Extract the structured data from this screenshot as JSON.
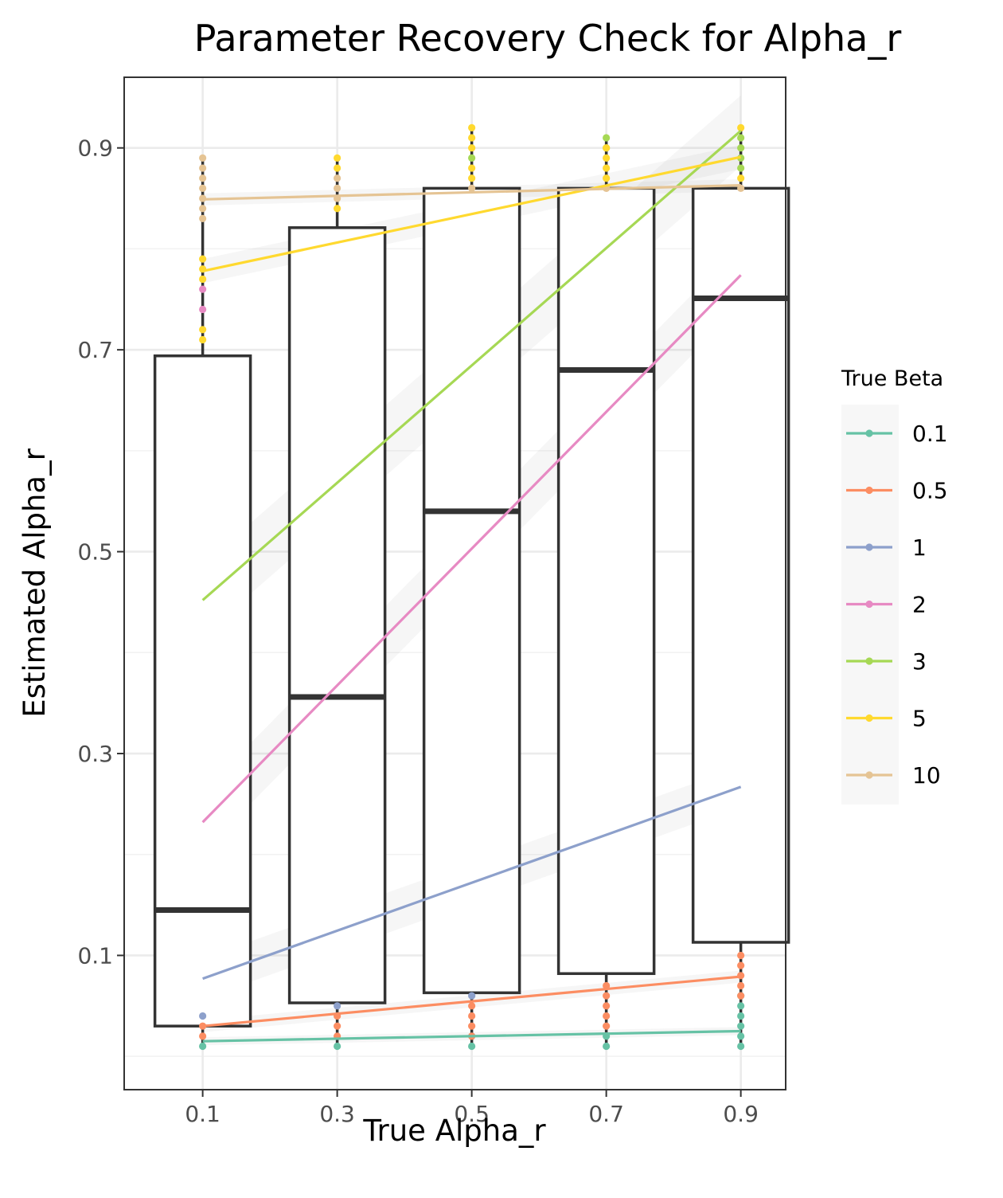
{
  "chart_data": {
    "type": "box",
    "title": "Parameter Recovery Check for Alpha_r",
    "xlabel": "True Alpha_r",
    "ylabel": "Estimated Alpha_r",
    "categories": [
      "0.1",
      "0.3",
      "0.5",
      "0.7",
      "0.9"
    ],
    "x_values": [
      0.1,
      0.3,
      0.5,
      0.7,
      0.9
    ],
    "xlim": [
      -0.0167,
      0.9667
    ],
    "ylim": [
      -0.033,
      0.97
    ],
    "y_ticks": [
      0.1,
      0.3,
      0.5,
      0.7,
      0.9
    ],
    "y_tick_labels": [
      "0.1",
      "0.3",
      "0.5",
      "0.7",
      "0.9"
    ],
    "grid": true,
    "boxes": [
      {
        "category": "0.1",
        "q1": 0.03,
        "median": 0.145,
        "q3": 0.694,
        "whisker_low": 0.01,
        "whisker_high": 0.89
      },
      {
        "category": "0.3",
        "q1": 0.053,
        "median": 0.356,
        "q3": 0.821,
        "whisker_low": 0.01,
        "whisker_high": 0.89
      },
      {
        "category": "0.5",
        "q1": 0.063,
        "median": 0.54,
        "q3": 0.86,
        "whisker_low": 0.01,
        "whisker_high": 0.92
      },
      {
        "category": "0.7",
        "q1": 0.082,
        "median": 0.68,
        "q3": 0.86,
        "whisker_low": 0.01,
        "whisker_high": 0.91
      },
      {
        "category": "0.9",
        "q1": 0.113,
        "median": 0.751,
        "q3": 0.86,
        "whisker_low": 0.01,
        "whisker_high": 0.92
      }
    ],
    "legend": {
      "title": "True Beta",
      "placement": "right"
    },
    "series": [
      {
        "name": "0.1",
        "color": "#66C2A5",
        "fit_x": [
          0.1,
          0.9
        ],
        "fit_y": [
          0.015,
          0.025
        ],
        "band": 0.004,
        "points": [
          [
            0.1,
            0.01
          ],
          [
            0.3,
            0.01
          ],
          [
            0.5,
            0.01
          ],
          [
            0.5,
            0.02
          ],
          [
            0.7,
            0.01
          ],
          [
            0.7,
            0.02
          ],
          [
            0.9,
            0.01
          ],
          [
            0.9,
            0.02
          ],
          [
            0.9,
            0.03
          ],
          [
            0.9,
            0.04
          ],
          [
            0.9,
            0.05
          ],
          [
            0.9,
            0.06
          ]
        ]
      },
      {
        "name": "0.5",
        "color": "#FC8D62",
        "fit_x": [
          0.1,
          0.9
        ],
        "fit_y": [
          0.03,
          0.079
        ],
        "band": 0.006,
        "points": [
          [
            0.1,
            0.02
          ],
          [
            0.1,
            0.03
          ],
          [
            0.3,
            0.02
          ],
          [
            0.3,
            0.03
          ],
          [
            0.3,
            0.04
          ],
          [
            0.5,
            0.02
          ],
          [
            0.5,
            0.03
          ],
          [
            0.5,
            0.04
          ],
          [
            0.5,
            0.05
          ],
          [
            0.7,
            0.03
          ],
          [
            0.7,
            0.04
          ],
          [
            0.7,
            0.05
          ],
          [
            0.7,
            0.06
          ],
          [
            0.7,
            0.07
          ],
          [
            0.9,
            0.06
          ],
          [
            0.9,
            0.07
          ],
          [
            0.9,
            0.08
          ],
          [
            0.9,
            0.09
          ],
          [
            0.9,
            0.1
          ]
        ]
      },
      {
        "name": "1",
        "color": "#8DA0CB",
        "fit_x": [
          0.1,
          0.9
        ],
        "fit_y": [
          0.077,
          0.267
        ],
        "band": 0.02,
        "points": [
          [
            0.1,
            0.04
          ],
          [
            0.3,
            0.05
          ],
          [
            0.5,
            0.06
          ]
        ]
      },
      {
        "name": "2",
        "color": "#E78AC3",
        "fit_x": [
          0.1,
          0.9
        ],
        "fit_y": [
          0.232,
          0.774
        ],
        "band": 0.03,
        "points": [
          [
            0.1,
            0.74
          ],
          [
            0.1,
            0.76
          ]
        ]
      },
      {
        "name": "3",
        "color": "#A6D854",
        "fit_x": [
          0.1,
          0.9
        ],
        "fit_y": [
          0.452,
          0.917
        ],
        "band": 0.035,
        "points": [
          [
            0.5,
            0.89
          ],
          [
            0.7,
            0.9
          ],
          [
            0.7,
            0.91
          ],
          [
            0.9,
            0.88
          ],
          [
            0.9,
            0.89
          ],
          [
            0.9,
            0.9
          ],
          [
            0.9,
            0.91
          ]
        ]
      },
      {
        "name": "5",
        "color": "#FFD92F",
        "fit_x": [
          0.1,
          0.9
        ],
        "fit_y": [
          0.778,
          0.891
        ],
        "band": 0.012,
        "points": [
          [
            0.1,
            0.71
          ],
          [
            0.1,
            0.72
          ],
          [
            0.1,
            0.77
          ],
          [
            0.1,
            0.78
          ],
          [
            0.1,
            0.79
          ],
          [
            0.3,
            0.84
          ],
          [
            0.3,
            0.88
          ],
          [
            0.3,
            0.89
          ],
          [
            0.5,
            0.87
          ],
          [
            0.5,
            0.88
          ],
          [
            0.5,
            0.9
          ],
          [
            0.5,
            0.91
          ],
          [
            0.5,
            0.92
          ],
          [
            0.7,
            0.87
          ],
          [
            0.7,
            0.88
          ],
          [
            0.7,
            0.89
          ],
          [
            0.7,
            0.9
          ],
          [
            0.9,
            0.87
          ],
          [
            0.9,
            0.92
          ]
        ]
      },
      {
        "name": "10",
        "color": "#E5C494",
        "fit_x": [
          0.1,
          0.9
        ],
        "fit_y": [
          0.849,
          0.863
        ],
        "band": 0.006,
        "points": [
          [
            0.1,
            0.83
          ],
          [
            0.1,
            0.84
          ],
          [
            0.1,
            0.85
          ],
          [
            0.1,
            0.86
          ],
          [
            0.1,
            0.87
          ],
          [
            0.1,
            0.88
          ],
          [
            0.1,
            0.89
          ],
          [
            0.3,
            0.85
          ],
          [
            0.3,
            0.86
          ],
          [
            0.3,
            0.87
          ],
          [
            0.5,
            0.86
          ],
          [
            0.7,
            0.86
          ],
          [
            0.9,
            0.86
          ]
        ]
      }
    ]
  }
}
